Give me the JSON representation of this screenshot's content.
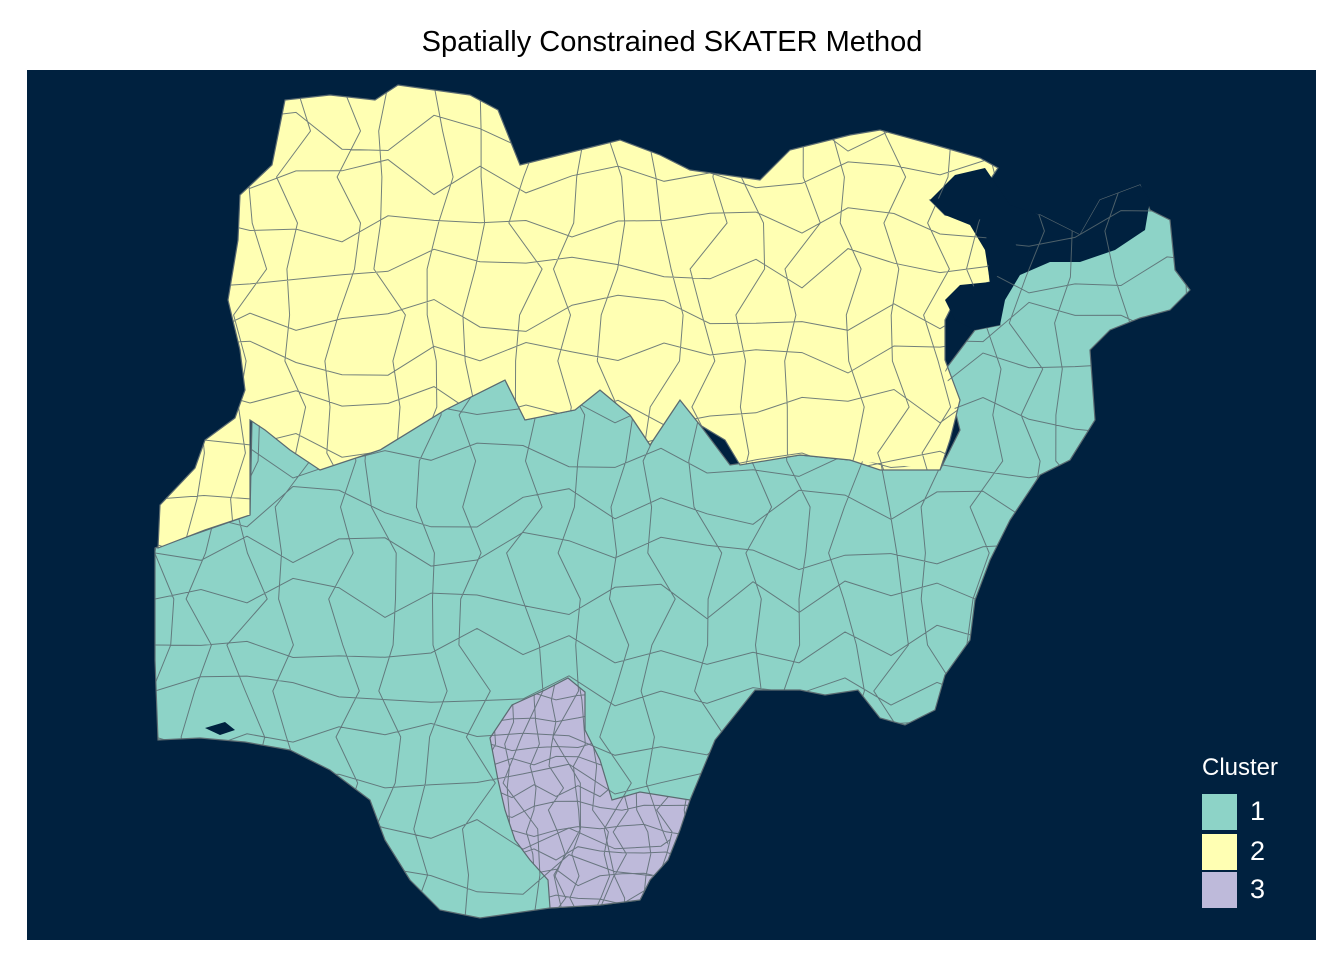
{
  "title": "Spatially Constrained SKATER Method",
  "colors": {
    "background": "#00213f",
    "border": "#5b6b71"
  },
  "legend": {
    "title": "Cluster",
    "items": [
      {
        "label": "1",
        "color": "#8dd3c7"
      },
      {
        "label": "2",
        "color": "#ffffb3"
      },
      {
        "label": "3",
        "color": "#bebada"
      }
    ]
  }
}
